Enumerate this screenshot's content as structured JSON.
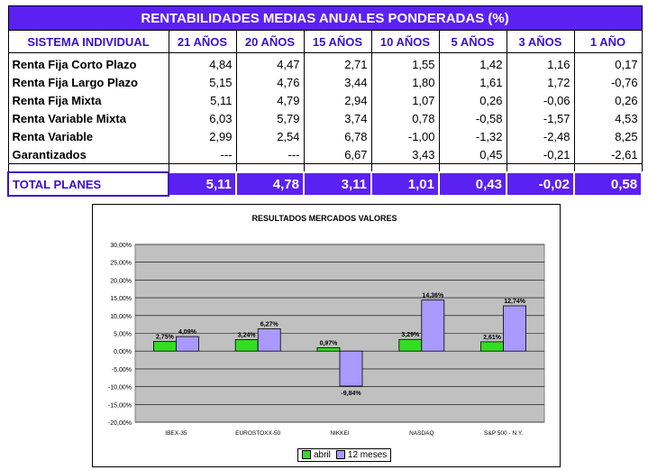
{
  "table": {
    "title": "RENTABILIDADES MEDIAS ANUALES PONDERADAS (%)",
    "headers": [
      "SISTEMA INDIVIDUAL",
      "21 AÑOS",
      "20 AÑOS",
      "15 AÑOS",
      "10 AÑOS",
      "5 AÑOS",
      "3 AÑOS",
      "1 AÑO"
    ],
    "rows": [
      {
        "label": "Renta Fija Corto Plazo",
        "values": [
          "4,84",
          "4,47",
          "2,71",
          "1,55",
          "1,42",
          "1,16",
          "0,17"
        ]
      },
      {
        "label": "Renta Fija Largo Plazo",
        "values": [
          "5,15",
          "4,76",
          "3,44",
          "1,80",
          "1,61",
          "1,72",
          "-0,76"
        ]
      },
      {
        "label": "Renta Fija Mixta",
        "values": [
          "5,11",
          "4,79",
          "2,94",
          "1,07",
          "0,26",
          "-0,06",
          "0,26"
        ]
      },
      {
        "label": "Renta Variable Mixta",
        "values": [
          "6,03",
          "5,79",
          "3,74",
          "0,78",
          "-0,58",
          "-1,57",
          "4,53"
        ]
      },
      {
        "label": "Renta Variable",
        "values": [
          "2,99",
          "2,54",
          "6,78",
          "-1,00",
          "-1,32",
          "-2,48",
          "8,25"
        ]
      },
      {
        "label": "Garantizados",
        "values": [
          "---",
          "---",
          "6,67",
          "3,43",
          "0,45",
          "-0,21",
          "-2,61"
        ]
      }
    ],
    "total": {
      "label": "TOTAL PLANES",
      "values": [
        "5,11",
        "4,78",
        "3,11",
        "1,01",
        "0,43",
        "-0,02",
        "0,58"
      ]
    }
  },
  "chart_data": {
    "type": "bar",
    "title": "RESULTADOS MERCADOS VALORES",
    "categories": [
      "IBEX-35",
      "EUROSTOXX-50",
      "NIKKEI",
      "NASDAQ",
      "S&P 500 - N.Y."
    ],
    "series": [
      {
        "name": "abril",
        "color": "#33dd22",
        "values": [
          2.75,
          3.24,
          0.97,
          3.29,
          2.61
        ],
        "labels": [
          "2,75%",
          "3,24%",
          "0,97%",
          "3,29%",
          "2,61%"
        ]
      },
      {
        "name": "12 meses",
        "color": "#aa99ff",
        "values": [
          4.09,
          6.27,
          -9.84,
          14.36,
          12.74
        ],
        "labels": [
          "4,09%",
          "6,27%",
          "-9,84%",
          "14,36%",
          "12,74%"
        ]
      }
    ],
    "ylim": [
      -20,
      30
    ],
    "yticks": [
      "30,00%",
      "25,00%",
      "20,00%",
      "15,00%",
      "10,00%",
      "5,00%",
      "0,00%",
      "-5,00%",
      "-10,00%",
      "-15,00%",
      "-20,00%"
    ],
    "grid": true,
    "plot_background": "#c0c0c0",
    "legend": "bottom"
  }
}
